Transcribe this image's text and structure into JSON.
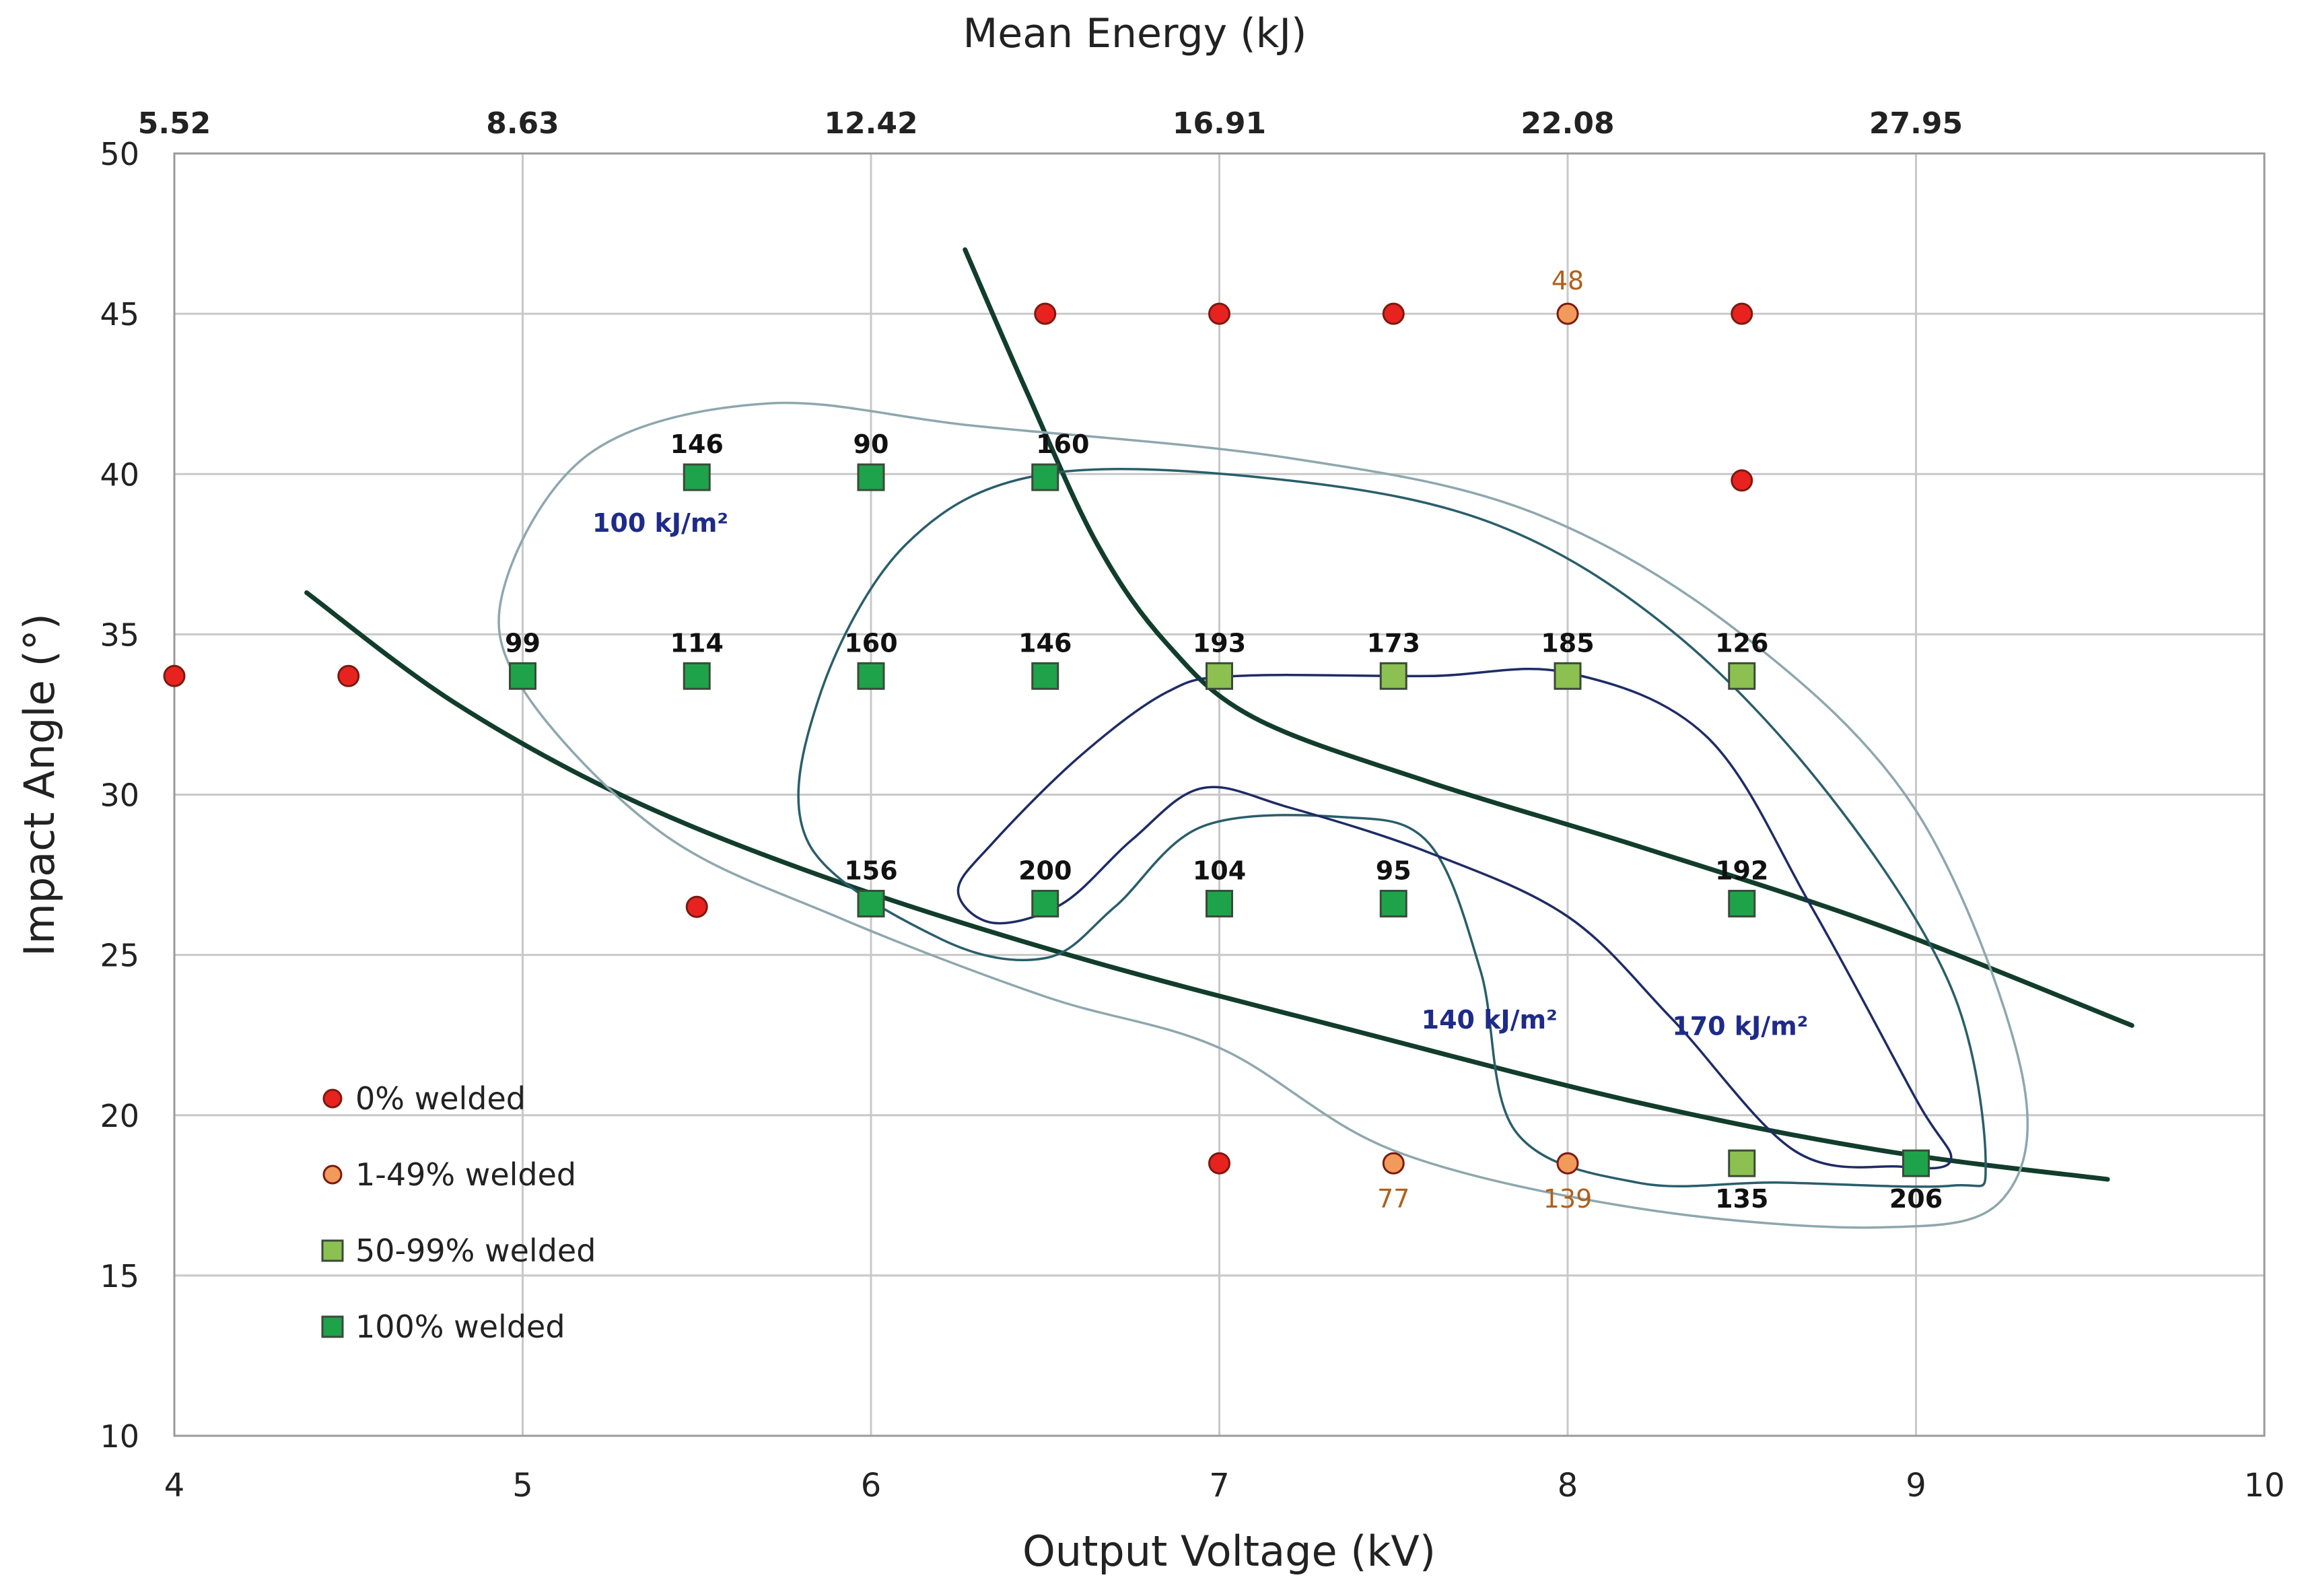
{
  "chart_data": {
    "type": "scatter",
    "title": "",
    "xlabel": "Output Voltage (kV)",
    "ylabel": "Impact Angle (°)",
    "top_axis_title": "Mean Energy (kJ)",
    "xlim": [
      4,
      10
    ],
    "ylim": [
      10,
      50
    ],
    "x_ticks": [
      4,
      5,
      6,
      7,
      8,
      9,
      10
    ],
    "y_ticks": [
      10,
      15,
      20,
      25,
      30,
      35,
      40,
      45,
      50
    ],
    "top_ticks": [
      {
        "x": 4,
        "label": "5.52"
      },
      {
        "x": 5,
        "label": "8.63"
      },
      {
        "x": 6,
        "label": "12.42"
      },
      {
        "x": 7,
        "label": "16.91"
      },
      {
        "x": 8,
        "label": "22.08"
      },
      {
        "x": 9,
        "label": "27.95"
      }
    ],
    "grid": true,
    "legend_position": "bottom-left",
    "legend": [
      {
        "key": "none",
        "label": "0% welded",
        "marker": "circle",
        "color": "#e8231f"
      },
      {
        "key": "partial",
        "label": "1-49% welded",
        "marker": "circle",
        "color": "#f29a5a"
      },
      {
        "key": "most",
        "label": "50-99% welded",
        "marker": "square",
        "color": "#8cc152"
      },
      {
        "key": "full",
        "label": "100% welded",
        "marker": "square",
        "color": "#1fa34a"
      }
    ],
    "series": [
      {
        "name": "0% welded",
        "key": "none",
        "points": [
          {
            "x": 4,
            "y": 33.7,
            "label": ""
          },
          {
            "x": 4.5,
            "y": 33.7,
            "label": ""
          },
          {
            "x": 5.5,
            "y": 26.5,
            "label": ""
          },
          {
            "x": 6.5,
            "y": 45,
            "label": ""
          },
          {
            "x": 7,
            "y": 45,
            "label": ""
          },
          {
            "x": 7.5,
            "y": 45,
            "label": ""
          },
          {
            "x": 8.5,
            "y": 45,
            "label": ""
          },
          {
            "x": 8.5,
            "y": 39.8,
            "label": ""
          },
          {
            "x": 7,
            "y": 18.5,
            "label": ""
          }
        ]
      },
      {
        "name": "1-49% welded",
        "key": "partial",
        "points": [
          {
            "x": 8,
            "y": 45,
            "label": "48",
            "label_pos": "above"
          },
          {
            "x": 7.5,
            "y": 18.5,
            "label": "77",
            "label_pos": "below"
          },
          {
            "x": 8,
            "y": 18.5,
            "label": "139",
            "label_pos": "below"
          }
        ]
      },
      {
        "name": "50-99% welded",
        "key": "most",
        "points": [
          {
            "x": 7,
            "y": 33.7,
            "label": "193",
            "label_pos": "above"
          },
          {
            "x": 7.5,
            "y": 33.7,
            "label": "173",
            "label_pos": "above"
          },
          {
            "x": 8,
            "y": 33.7,
            "label": "185",
            "label_pos": "above"
          },
          {
            "x": 8.5,
            "y": 33.7,
            "label": "126",
            "label_pos": "above"
          },
          {
            "x": 8.5,
            "y": 18.5,
            "label": "135",
            "label_pos": "below"
          }
        ]
      },
      {
        "name": "100% welded",
        "key": "full",
        "points": [
          {
            "x": 5.5,
            "y": 39.9,
            "label": "146",
            "label_pos": "above"
          },
          {
            "x": 6,
            "y": 39.9,
            "label": "90",
            "label_pos": "above"
          },
          {
            "x": 6.5,
            "y": 39.9,
            "label": "160",
            "label_pos": "above-right"
          },
          {
            "x": 5,
            "y": 33.7,
            "label": "99",
            "label_pos": "above"
          },
          {
            "x": 5.5,
            "y": 33.7,
            "label": "114",
            "label_pos": "above"
          },
          {
            "x": 6,
            "y": 33.7,
            "label": "160",
            "label_pos": "above"
          },
          {
            "x": 6.5,
            "y": 33.7,
            "label": "146",
            "label_pos": "above"
          },
          {
            "x": 6,
            "y": 26.6,
            "label": "156",
            "label_pos": "above"
          },
          {
            "x": 6.5,
            "y": 26.6,
            "label": "200",
            "label_pos": "above"
          },
          {
            "x": 7,
            "y": 26.6,
            "label": "104",
            "label_pos": "above"
          },
          {
            "x": 7.5,
            "y": 26.6,
            "label": "95",
            "label_pos": "above"
          },
          {
            "x": 8.5,
            "y": 26.6,
            "label": "192",
            "label_pos": "above"
          },
          {
            "x": 9,
            "y": 18.5,
            "label": "206",
            "label_pos": "below"
          }
        ]
      }
    ],
    "boundary_curves": [
      {
        "name": "lower-boundary",
        "points": [
          [
            4.38,
            36.3
          ],
          [
            4.8,
            32.9
          ],
          [
            5.3,
            29.9
          ],
          [
            5.9,
            27.3
          ],
          [
            6.6,
            24.9
          ],
          [
            7.4,
            22.6
          ],
          [
            8.2,
            20.4
          ],
          [
            8.9,
            18.9
          ],
          [
            9.55,
            18
          ]
        ]
      },
      {
        "name": "upper-boundary",
        "points": [
          [
            6.27,
            47
          ],
          [
            6.45,
            42.5
          ],
          [
            6.65,
            37.8
          ],
          [
            6.85,
            34.7
          ],
          [
            7.1,
            32.4
          ],
          [
            7.6,
            30.4
          ],
          [
            8.2,
            28.4
          ],
          [
            8.9,
            25.9
          ],
          [
            9.62,
            22.8
          ]
        ]
      }
    ],
    "contours": [
      {
        "name": "contour-100",
        "label": "100 kJ/m²",
        "label_at": [
          5.2,
          38.2
        ],
        "color": "#8ea7ae",
        "points": [
          [
            5.7,
            42.2
          ],
          [
            6.3,
            41.5
          ],
          [
            7.2,
            40.5
          ],
          [
            7.9,
            38.8
          ],
          [
            8.5,
            35
          ],
          [
            9.0,
            29.5
          ],
          [
            9.3,
            21.5
          ],
          [
            9.25,
            17.4
          ],
          [
            8.9,
            16.5
          ],
          [
            8.2,
            17.1
          ],
          [
            7.5,
            18.9
          ],
          [
            7.0,
            22.1
          ],
          [
            6.5,
            23.7
          ],
          [
            5.9,
            26.2
          ],
          [
            5.4,
            28.8
          ],
          [
            5.0,
            33.3
          ],
          [
            4.95,
            36.6
          ],
          [
            5.2,
            40.7
          ]
        ]
      },
      {
        "name": "contour-140",
        "label": "140 kJ/m²",
        "label_at": [
          7.58,
          22.7
        ],
        "color": "#2a5e6b",
        "points": [
          [
            6.5,
            40.0
          ],
          [
            7.2,
            39.8
          ],
          [
            7.8,
            38.4
          ],
          [
            8.3,
            35.1
          ],
          [
            8.75,
            30.0
          ],
          [
            9.1,
            24.0
          ],
          [
            9.2,
            18.5
          ],
          [
            9.1,
            17.8
          ],
          [
            8.6,
            17.9
          ],
          [
            8.2,
            17.9
          ],
          [
            7.85,
            19.5
          ],
          [
            7.75,
            24.5
          ],
          [
            7.6,
            28.5
          ],
          [
            7.35,
            29.3
          ],
          [
            6.95,
            29.0
          ],
          [
            6.7,
            26.5
          ],
          [
            6.5,
            24.9
          ],
          [
            6.2,
            25.5
          ],
          [
            5.82,
            28.5
          ],
          [
            5.85,
            33.0
          ],
          [
            6.1,
            37.8
          ]
        ]
      },
      {
        "name": "contour-170",
        "label": "170 kJ/m²",
        "label_at": [
          8.3,
          22.5
        ],
        "color": "#1e2b66",
        "points": [
          [
            7.05,
            33.7
          ],
          [
            7.6,
            33.7
          ],
          [
            8.0,
            33.8
          ],
          [
            8.4,
            31.8
          ],
          [
            8.7,
            26.5
          ],
          [
            9.0,
            20.5
          ],
          [
            9.1,
            18.6
          ],
          [
            8.95,
            18.4
          ],
          [
            8.65,
            18.9
          ],
          [
            8.3,
            23.0
          ],
          [
            8.0,
            26.2
          ],
          [
            7.6,
            28.2
          ],
          [
            7.2,
            29.6
          ],
          [
            6.95,
            30.2
          ],
          [
            6.75,
            28.6
          ],
          [
            6.55,
            26.6
          ],
          [
            6.35,
            26.0
          ],
          [
            6.25,
            27.0
          ],
          [
            6.35,
            28.5
          ],
          [
            6.6,
            31.2
          ],
          [
            6.85,
            33.2
          ]
        ]
      }
    ]
  }
}
